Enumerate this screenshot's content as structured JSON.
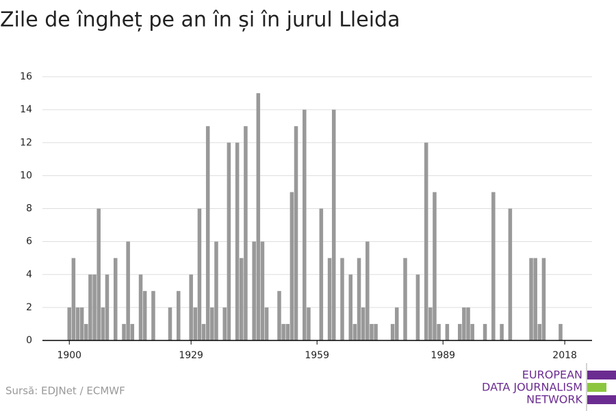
{
  "chart_data": {
    "type": "bar",
    "title": "Zile de îngheț pe an în și în jurul Lleida",
    "source": "Sursă: EDJNet / ECMWF",
    "logo": [
      "EUROPEAN",
      "DATA JOURNALISM",
      "NETWORK"
    ],
    "color": "#999999",
    "x": [
      1900,
      1901,
      1902,
      1903,
      1904,
      1905,
      1906,
      1907,
      1908,
      1909,
      1910,
      1911,
      1912,
      1913,
      1914,
      1915,
      1916,
      1917,
      1918,
      1919,
      1920,
      1921,
      1922,
      1923,
      1924,
      1925,
      1926,
      1927,
      1928,
      1929,
      1930,
      1931,
      1932,
      1933,
      1934,
      1935,
      1936,
      1937,
      1938,
      1939,
      1940,
      1941,
      1942,
      1943,
      1944,
      1945,
      1946,
      1947,
      1948,
      1949,
      1950,
      1951,
      1952,
      1953,
      1954,
      1955,
      1956,
      1957,
      1958,
      1959,
      1960,
      1961,
      1962,
      1963,
      1964,
      1965,
      1966,
      1967,
      1968,
      1969,
      1970,
      1971,
      1972,
      1973,
      1974,
      1975,
      1976,
      1977,
      1978,
      1979,
      1980,
      1981,
      1982,
      1983,
      1984,
      1985,
      1986,
      1987,
      1988,
      1989,
      1990,
      1991,
      1992,
      1993,
      1994,
      1995,
      1996,
      1997,
      1998,
      1999,
      2000,
      2001,
      2002,
      2003,
      2004,
      2005,
      2006,
      2007,
      2008,
      2009,
      2010,
      2011,
      2012,
      2013,
      2014,
      2015,
      2016,
      2017,
      2018
    ],
    "values": [
      2,
      5,
      2,
      2,
      1,
      4,
      4,
      8,
      2,
      4,
      0,
      5,
      0,
      1,
      6,
      1,
      0,
      4,
      3,
      0,
      3,
      0,
      0,
      0,
      2,
      0,
      3,
      0,
      0,
      4,
      2,
      8,
      1,
      13,
      2,
      6,
      0,
      2,
      12,
      0,
      12,
      5,
      13,
      0,
      6,
      15,
      6,
      2,
      0,
      0,
      3,
      1,
      1,
      9,
      13,
      0,
      14,
      2,
      0,
      0,
      8,
      0,
      5,
      14,
      0,
      5,
      0,
      4,
      1,
      5,
      2,
      6,
      1,
      1,
      0,
      0,
      0,
      1,
      2,
      0,
      5,
      0,
      0,
      4,
      0,
      12,
      2,
      9,
      1,
      0,
      1,
      0,
      0,
      1,
      2,
      2,
      1,
      0,
      0,
      1,
      0,
      9,
      0,
      1,
      0,
      8,
      0,
      0,
      0,
      0,
      5,
      5,
      1,
      5,
      0,
      0,
      0,
      1,
      0
    ],
    "xlim": [
      1893.6,
      2024.5
    ],
    "xticks": [
      1900,
      1929,
      1959,
      1989,
      2018
    ],
    "ylim": [
      0,
      16
    ],
    "yticks": [
      0,
      2,
      4,
      6,
      8,
      10,
      12,
      14,
      16
    ],
    "grid": true
  }
}
